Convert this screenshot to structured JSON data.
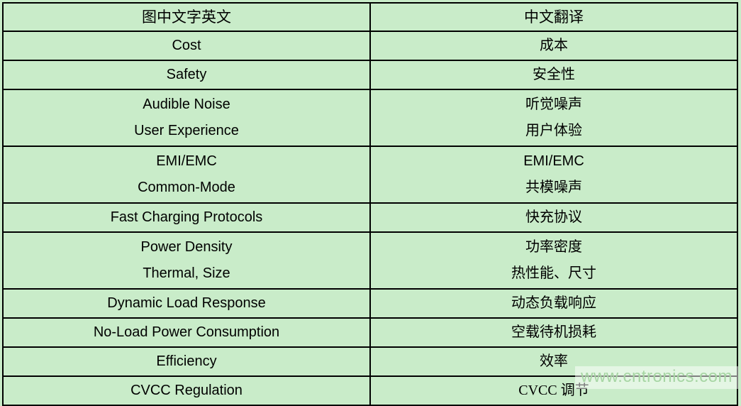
{
  "page": {
    "background_color": "#c9ecc9",
    "grid_color": "#000000",
    "text_color": "#000000"
  },
  "table": {
    "headers": [
      "图中文字英文",
      "中文翻译"
    ],
    "rows": [
      {
        "en": [
          "Cost"
        ],
        "zh": [
          "成本"
        ]
      },
      {
        "en": [
          "Safety"
        ],
        "zh": [
          "安全性"
        ]
      },
      {
        "en": [
          "Audible Noise",
          "User Experience"
        ],
        "zh": [
          "听觉噪声",
          "用户体验"
        ]
      },
      {
        "en": [
          "EMI/EMC",
          "Common-Mode"
        ],
        "zh": [
          "EMI/EMC",
          "共模噪声"
        ]
      },
      {
        "en": [
          "Fast Charging Protocols"
        ],
        "zh": [
          "快充协议"
        ]
      },
      {
        "en": [
          "Power Density",
          "Thermal, Size"
        ],
        "zh": [
          "功率密度",
          "热性能、尺寸"
        ]
      },
      {
        "en": [
          "Dynamic Load Response"
        ],
        "zh": [
          "动态负载响应"
        ]
      },
      {
        "en": [
          "No-Load Power Consumption"
        ],
        "zh": [
          "空载待机损耗"
        ]
      },
      {
        "en": [
          "Efficiency"
        ],
        "zh": [
          "效率"
        ]
      },
      {
        "en": [
          "CVCC Regulation"
        ],
        "zh": [
          "CVCC 调节"
        ]
      }
    ]
  },
  "watermark": {
    "text": "www.cntronics.com",
    "color": "#a7d6a4"
  }
}
